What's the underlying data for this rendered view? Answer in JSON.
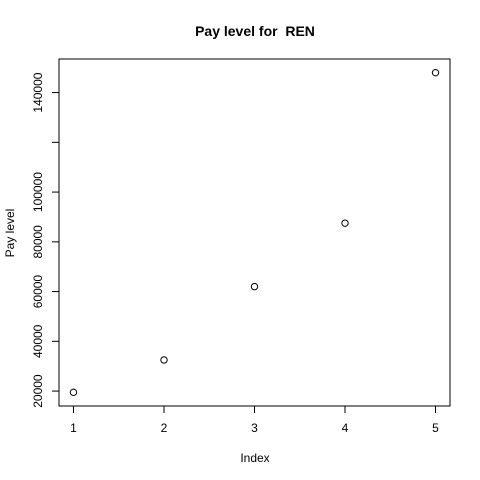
{
  "chart_data": {
    "type": "scatter",
    "title": "Pay level for  REN",
    "xlabel": "Index",
    "ylabel": "Pay level",
    "x": [
      1,
      2,
      3,
      4,
      5
    ],
    "y": [
      19500,
      32500,
      62000,
      87500,
      148000
    ],
    "xlim": [
      0.84,
      5.16
    ],
    "ylim": [
      14000,
      153500
    ],
    "xticks": [
      1,
      2,
      3,
      4,
      5
    ],
    "xtick_labels": [
      "1",
      "2",
      "3",
      "4",
      "5"
    ],
    "yticks": [
      20000,
      40000,
      60000,
      80000,
      100000,
      120000,
      140000
    ],
    "ytick_labels": [
      "20000",
      "40000",
      "60000",
      "80000",
      "100000",
      "",
      "140000"
    ],
    "grid": false,
    "marker": "open-circle",
    "colors": {
      "points": "#000000",
      "axes": "#000000"
    }
  }
}
